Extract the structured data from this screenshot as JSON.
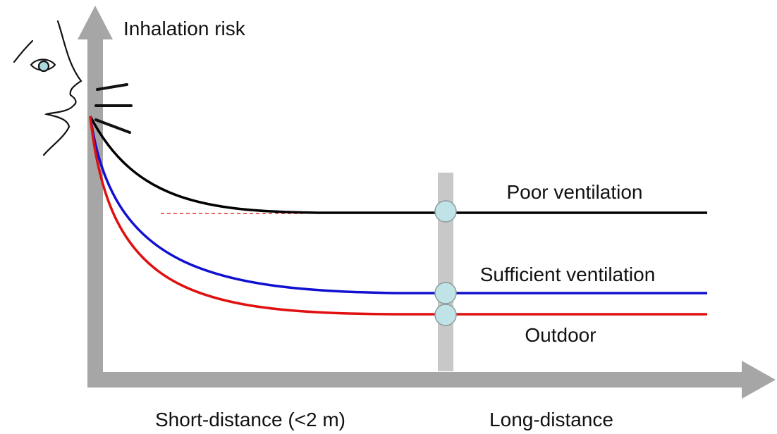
{
  "axes": {
    "y_label": "Inhalation risk",
    "x_labels": [
      "Short-distance (<2 m)",
      "Long-distance"
    ]
  },
  "curves": [
    {
      "label": "Poor ventilation"
    },
    {
      "label": "Sufficient ventilation"
    },
    {
      "label": "Outdoor"
    }
  ]
}
